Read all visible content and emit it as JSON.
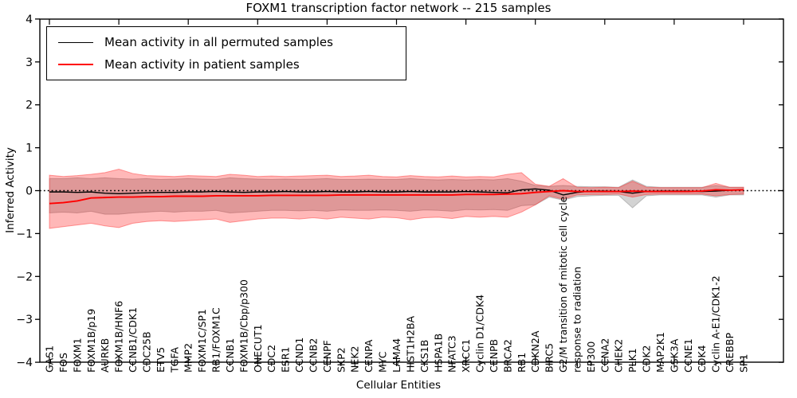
{
  "title": "FOXM1 transcription factor network -- 215 samples",
  "axes": {
    "ylabel": "Inferred Activity",
    "xlabel": "Cellular Entities",
    "yticks": [
      -4,
      -3,
      -2,
      -1,
      0,
      1,
      2,
      3,
      4
    ],
    "ylim": [
      -4,
      4
    ],
    "zero_line": "dotted"
  },
  "legend": {
    "items": [
      {
        "label": "Mean activity in all permuted samples",
        "color": "#000000",
        "weight": 1.5
      },
      {
        "label": "Mean activity in patient samples",
        "color": "#ff0000",
        "weight": 2
      }
    ]
  },
  "colors": {
    "permuted_line": "#000000",
    "patient_line": "#ff0000",
    "permuted_band_fill": "rgba(128,128,128,0.35)",
    "permuted_band_edge": "rgba(100,100,100,0.35)",
    "patient_band_fill": "rgba(255,0,0,0.28)",
    "patient_band_edge": "rgba(255,40,40,0.45)",
    "frame": "#000000"
  },
  "chart_data": {
    "type": "line",
    "title": "FOXM1 transcription factor network -- 215 samples",
    "xlabel": "Cellular Entities",
    "ylabel": "Inferred Activity",
    "ylim": [
      -4,
      4
    ],
    "grid": false,
    "legend_position": "upper left",
    "categories": [
      "GAS1",
      "FOS",
      "FOXM1",
      "FOXM1B/p19",
      "AURKB",
      "FOXM1B/HNF6",
      "CCNB1/CDK1",
      "CDC25B",
      "ETV5",
      "TGFA",
      "MMP2",
      "FOXM1C/SP1",
      "RB1/FOXM1C",
      "CCNB1",
      "FOXM1B/Cbp/p300",
      "ONECUT1",
      "CDC2",
      "ESR1",
      "CCND1",
      "CCNB2",
      "CENPF",
      "SKP2",
      "NEK2",
      "CENPA",
      "MYC",
      "LAMA4",
      "HIST1H2BA",
      "CKS1B",
      "HSPA1B",
      "NFATC3",
      "XRCC1",
      "Cyclin D1/CDK4",
      "CENPB",
      "BRCA2",
      "RB1",
      "CDKN2A",
      "BIRC5",
      "G2/M transition of mitotic cell cycle",
      "response to radiation",
      "EP300",
      "CCNA2",
      "CHEK2",
      "PLK1",
      "CDK2",
      "MAP2K1",
      "GSK3A",
      "CCNE1",
      "CDK4",
      "Cyclin A-E1/CDK1-2",
      "CREBBP",
      "SP1"
    ],
    "series": [
      {
        "name": "Mean activity in all permuted samples",
        "values": [
          -0.03,
          -0.03,
          -0.04,
          -0.03,
          -0.06,
          -0.07,
          -0.06,
          -0.05,
          -0.04,
          -0.04,
          -0.03,
          -0.03,
          -0.02,
          -0.03,
          -0.04,
          -0.03,
          -0.03,
          -0.02,
          -0.03,
          -0.03,
          -0.02,
          -0.03,
          -0.03,
          -0.02,
          -0.03,
          -0.03,
          -0.02,
          -0.03,
          -0.03,
          -0.03,
          -0.02,
          -0.03,
          -0.04,
          -0.05,
          0.02,
          0.04,
          0.01,
          -0.1,
          -0.04,
          -0.01,
          -0.01,
          -0.02,
          -0.06,
          -0.02,
          -0.01,
          -0.01,
          -0.01,
          -0.02,
          -0.01,
          0.01,
          0.02
        ]
      },
      {
        "name": "Mean activity in patient samples",
        "values": [
          -0.3,
          -0.28,
          -0.24,
          -0.17,
          -0.16,
          -0.15,
          -0.15,
          -0.14,
          -0.14,
          -0.13,
          -0.13,
          -0.13,
          -0.12,
          -0.12,
          -0.12,
          -0.12,
          -0.11,
          -0.11,
          -0.11,
          -0.11,
          -0.11,
          -0.1,
          -0.1,
          -0.1,
          -0.1,
          -0.1,
          -0.1,
          -0.1,
          -0.1,
          -0.1,
          -0.09,
          -0.09,
          -0.09,
          -0.08,
          -0.07,
          -0.04,
          -0.02,
          0.0,
          -0.02,
          -0.02,
          -0.02,
          -0.02,
          -0.01,
          -0.02,
          -0.02,
          -0.02,
          -0.02,
          -0.01,
          0.02,
          0.01,
          0.02
        ]
      }
    ],
    "bands": [
      {
        "name": "permuted samples range",
        "upper": [
          0.28,
          0.28,
          0.3,
          0.28,
          0.3,
          0.28,
          0.27,
          0.28,
          0.26,
          0.27,
          0.28,
          0.27,
          0.26,
          0.3,
          0.28,
          0.27,
          0.26,
          0.27,
          0.26,
          0.27,
          0.28,
          0.26,
          0.26,
          0.27,
          0.26,
          0.26,
          0.28,
          0.26,
          0.25,
          0.26,
          0.25,
          0.26,
          0.25,
          0.28,
          0.22,
          0.12,
          0.1,
          0.12,
          0.1,
          0.09,
          0.09,
          0.08,
          0.25,
          0.1,
          0.08,
          0.08,
          0.08,
          0.08,
          0.12,
          0.08,
          0.08
        ],
        "lower": [
          -0.52,
          -0.5,
          -0.52,
          -0.48,
          -0.55,
          -0.55,
          -0.52,
          -0.5,
          -0.48,
          -0.5,
          -0.48,
          -0.48,
          -0.46,
          -0.52,
          -0.5,
          -0.48,
          -0.46,
          -0.46,
          -0.47,
          -0.46,
          -0.48,
          -0.45,
          -0.46,
          -0.46,
          -0.45,
          -0.46,
          -0.48,
          -0.45,
          -0.46,
          -0.48,
          -0.44,
          -0.45,
          -0.44,
          -0.46,
          -0.35,
          -0.33,
          -0.15,
          -0.22,
          -0.14,
          -0.12,
          -0.11,
          -0.11,
          -0.4,
          -0.12,
          -0.1,
          -0.1,
          -0.1,
          -0.1,
          -0.15,
          -0.1,
          -0.1
        ]
      },
      {
        "name": "patient samples range",
        "upper": [
          0.36,
          0.33,
          0.35,
          0.38,
          0.42,
          0.5,
          0.4,
          0.35,
          0.34,
          0.33,
          0.35,
          0.34,
          0.33,
          0.38,
          0.36,
          0.33,
          0.34,
          0.33,
          0.34,
          0.35,
          0.36,
          0.33,
          0.34,
          0.36,
          0.33,
          0.32,
          0.35,
          0.33,
          0.32,
          0.34,
          0.32,
          0.33,
          0.32,
          0.38,
          0.42,
          0.15,
          0.1,
          0.28,
          0.08,
          0.07,
          0.08,
          0.07,
          0.22,
          0.08,
          0.07,
          0.07,
          0.07,
          0.07,
          0.17,
          0.08,
          0.08
        ],
        "lower": [
          -0.88,
          -0.84,
          -0.8,
          -0.76,
          -0.82,
          -0.86,
          -0.76,
          -0.72,
          -0.7,
          -0.72,
          -0.7,
          -0.68,
          -0.66,
          -0.74,
          -0.7,
          -0.66,
          -0.64,
          -0.64,
          -0.66,
          -0.63,
          -0.66,
          -0.62,
          -0.64,
          -0.66,
          -0.62,
          -0.63,
          -0.68,
          -0.63,
          -0.62,
          -0.65,
          -0.6,
          -0.62,
          -0.6,
          -0.62,
          -0.5,
          -0.33,
          -0.12,
          -0.2,
          -0.1,
          -0.09,
          -0.09,
          -0.08,
          -0.15,
          -0.09,
          -0.08,
          -0.08,
          -0.08,
          -0.08,
          -0.12,
          -0.09,
          -0.08
        ]
      }
    ]
  }
}
